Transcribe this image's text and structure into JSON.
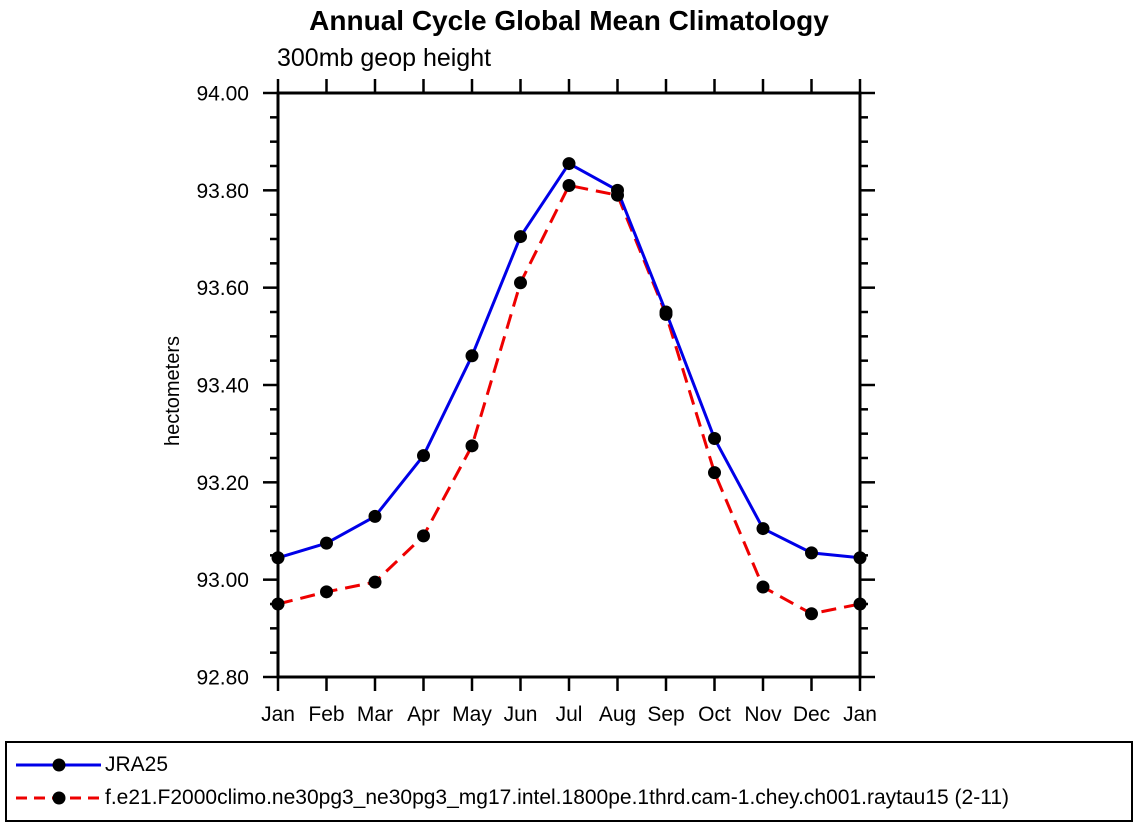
{
  "chart": {
    "title": "Annual Cycle Global Mean Climatology",
    "subtitle": "300mb geop height",
    "ylabel": "hectometers"
  },
  "chart_data": {
    "type": "line",
    "title": "Annual Cycle Global Mean Climatology",
    "subtitle": "300mb geop height",
    "xlabel": "",
    "ylabel": "hectometers",
    "categories": [
      "Jan",
      "Feb",
      "Mar",
      "Apr",
      "May",
      "Jun",
      "Jul",
      "Aug",
      "Sep",
      "Oct",
      "Nov",
      "Dec",
      "Jan"
    ],
    "ylim": [
      92.8,
      94.0
    ],
    "ytick_major": 0.2,
    "ytick_minor": 0.05,
    "ytick_labels": [
      "92.80",
      "93.00",
      "93.20",
      "93.40",
      "93.60",
      "93.80",
      "94.00"
    ],
    "grid": false,
    "legend_position": "bottom-left-box",
    "marker": {
      "shape": "filled-circle",
      "color": "#000000",
      "radius": 6.5
    },
    "frame_color": "#000000",
    "series": [
      {
        "name": "JRA25",
        "color": "#0000e8",
        "style": "solid",
        "values": [
          93.045,
          93.075,
          93.13,
          93.255,
          93.46,
          93.705,
          93.855,
          93.8,
          93.55,
          93.29,
          93.105,
          93.055,
          93.045
        ]
      },
      {
        "name": "f.e21.F2000climo.ne30pg3_ne30pg3_mg17.intel.1800pe.1thrd.cam-1.chey.ch001.raytau15 (2-11)",
        "color": "#ee0000",
        "style": "dashed",
        "values": [
          92.95,
          92.975,
          92.995,
          93.09,
          93.275,
          93.61,
          93.81,
          93.79,
          93.545,
          93.22,
          92.985,
          92.93,
          92.95
        ]
      }
    ]
  }
}
